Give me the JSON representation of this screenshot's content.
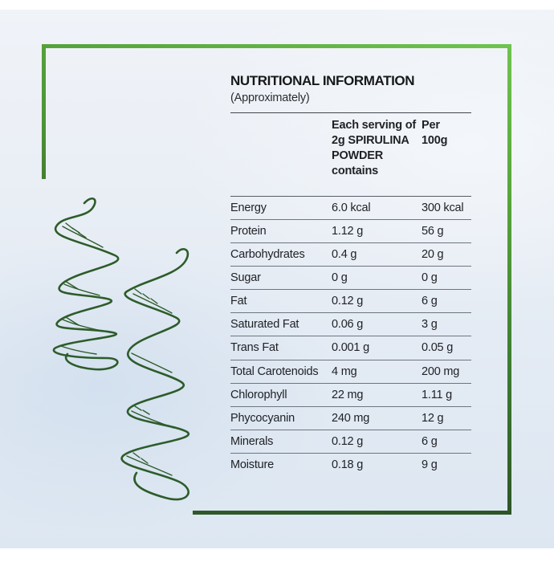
{
  "label": {
    "title": "NUTRITIONAL INFORMATION",
    "subtitle": "(Approximately)",
    "columns": {
      "serving_header": "Each serving of 2g SPIRULINA POWDER contains",
      "per100_header": "Per 100g"
    },
    "rows": [
      {
        "nutrient": "Energy",
        "serving": "6.0 kcal",
        "per100": "300 kcal"
      },
      {
        "nutrient": "Protein",
        "serving": "1.12 g",
        "per100": "56 g"
      },
      {
        "nutrient": "Carbohydrates",
        "serving": "0.4 g",
        "per100": "20 g"
      },
      {
        "nutrient": "Sugar",
        "serving": "0 g",
        "per100": "0 g"
      },
      {
        "nutrient": "Fat",
        "serving": "0.12 g",
        "per100": "6 g"
      },
      {
        "nutrient": "Saturated Fat",
        "serving": "0.06 g",
        "per100": "3 g"
      },
      {
        "nutrient": "Trans Fat",
        "serving": "0.001 g",
        "per100": "0.05 g"
      },
      {
        "nutrient": "Total Carotenoids",
        "serving": "4 mg",
        "per100": "200 mg"
      },
      {
        "nutrient": "Chlorophyll",
        "serving": "22 mg",
        "per100": "1.11 g"
      },
      {
        "nutrient": "Phycocyanin",
        "serving": "240 mg",
        "per100": "12 g"
      },
      {
        "nutrient": "Minerals",
        "serving": "0.12 g",
        "per100": "6 g"
      },
      {
        "nutrient": "Moisture",
        "serving": "0.18 g",
        "per100": "9 g"
      }
    ]
  },
  "illustration": {
    "name": "spirulina-coils-sketch"
  },
  "colors": {
    "frame_green_light": "#6ec44e",
    "frame_green_mid": "#55a23a",
    "frame_green_dark": "#2e5527",
    "sketch_green": "#2d5c2a",
    "background_tint": "#e5edf5",
    "text": "#1f2125",
    "divider": "#6e757d"
  }
}
